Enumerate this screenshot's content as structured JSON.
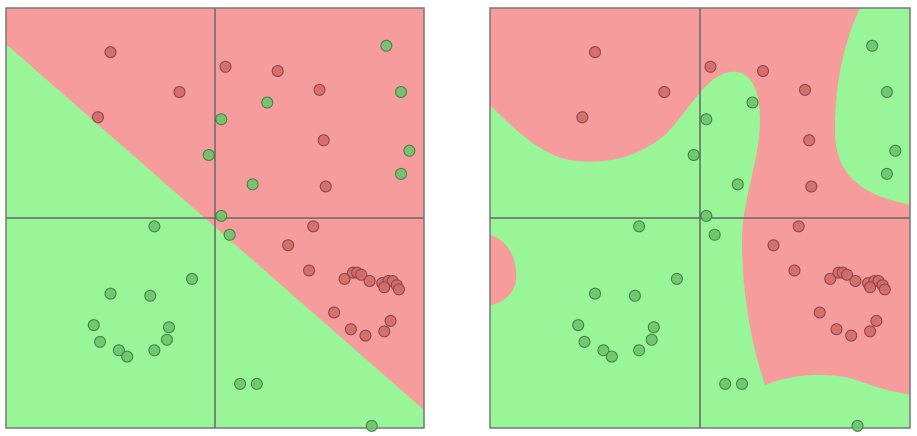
{
  "chart_data": [
    {
      "type": "scatter",
      "xlim": [
        -1,
        1
      ],
      "ylim": [
        -1,
        1
      ],
      "series": [
        {
          "color": "#d46a6a",
          "x": [
            -0.5,
            -0.17,
            -0.56,
            0.05,
            0.3,
            0.5,
            0.52,
            0.53,
            0.35,
            0.47,
            0.45,
            0.62,
            0.66,
            0.68,
            0.7,
            0.74,
            0.8,
            0.83,
            0.85,
            0.87,
            0.88,
            0.81,
            0.84,
            0.57,
            0.65,
            0.72,
            0.81
          ],
          "values": [
            0.79,
            0.6,
            0.48,
            0.72,
            0.7,
            0.61,
            0.37,
            0.15,
            -0.13,
            -0.04,
            -0.25,
            -0.29,
            -0.26,
            -0.26,
            -0.27,
            -0.3,
            -0.31,
            -0.3,
            -0.3,
            -0.32,
            -0.34,
            -0.33,
            -0.49,
            -0.45,
            -0.53,
            -0.56,
            -0.54
          ]
        },
        {
          "color": "#6cc46c",
          "x": [
            0.82,
            0.89,
            0.25,
            0.03,
            -0.03,
            0.93,
            0.89,
            0.18,
            0.03,
            0.07,
            -0.29,
            -0.11,
            -0.5,
            -0.31,
            -0.58,
            -0.55,
            -0.46,
            -0.42,
            -0.29,
            -0.23,
            -0.22,
            0.12,
            0.2,
            0.75
          ],
          "values": [
            0.82,
            0.6,
            0.55,
            0.47,
            0.3,
            0.32,
            0.21,
            0.16,
            0.01,
            -0.08,
            -0.04,
            -0.29,
            -0.36,
            -0.37,
            -0.51,
            -0.59,
            -0.63,
            -0.66,
            -0.63,
            -0.58,
            -0.52,
            -0.79,
            -0.79,
            -0.99
          ]
        }
      ]
    },
    {
      "type": "scatter",
      "xlim": [
        -1,
        1
      ],
      "ylim": [
        -1,
        1
      ],
      "series": [
        {
          "color": "#d46a6a",
          "x": [
            -0.5,
            -0.17,
            -0.56,
            0.05,
            0.3,
            0.5,
            0.52,
            0.53,
            0.35,
            0.47,
            0.45,
            0.62,
            0.66,
            0.68,
            0.7,
            0.74,
            0.8,
            0.83,
            0.85,
            0.87,
            0.88,
            0.81,
            0.84,
            0.57,
            0.65,
            0.72,
            0.81
          ],
          "values": [
            0.79,
            0.6,
            0.48,
            0.72,
            0.7,
            0.61,
            0.37,
            0.15,
            -0.13,
            -0.04,
            -0.25,
            -0.29,
            -0.26,
            -0.26,
            -0.27,
            -0.3,
            -0.31,
            -0.3,
            -0.3,
            -0.32,
            -0.34,
            -0.33,
            -0.49,
            -0.45,
            -0.53,
            -0.56,
            -0.54
          ]
        },
        {
          "color": "#6cc46c",
          "x": [
            0.82,
            0.89,
            0.25,
            0.03,
            -0.03,
            0.93,
            0.89,
            0.18,
            0.03,
            0.07,
            -0.29,
            -0.11,
            -0.5,
            -0.31,
            -0.58,
            -0.55,
            -0.46,
            -0.42,
            -0.29,
            -0.23,
            -0.22,
            0.12,
            0.2,
            0.75
          ],
          "values": [
            0.82,
            0.6,
            0.55,
            0.47,
            0.3,
            0.32,
            0.21,
            0.16,
            0.01,
            -0.08,
            -0.04,
            -0.29,
            -0.36,
            -0.37,
            -0.51,
            -0.59,
            -0.63,
            -0.66,
            -0.63,
            -0.58,
            -0.52,
            -0.79,
            -0.79,
            -0.99
          ]
        }
      ]
    }
  ]
}
